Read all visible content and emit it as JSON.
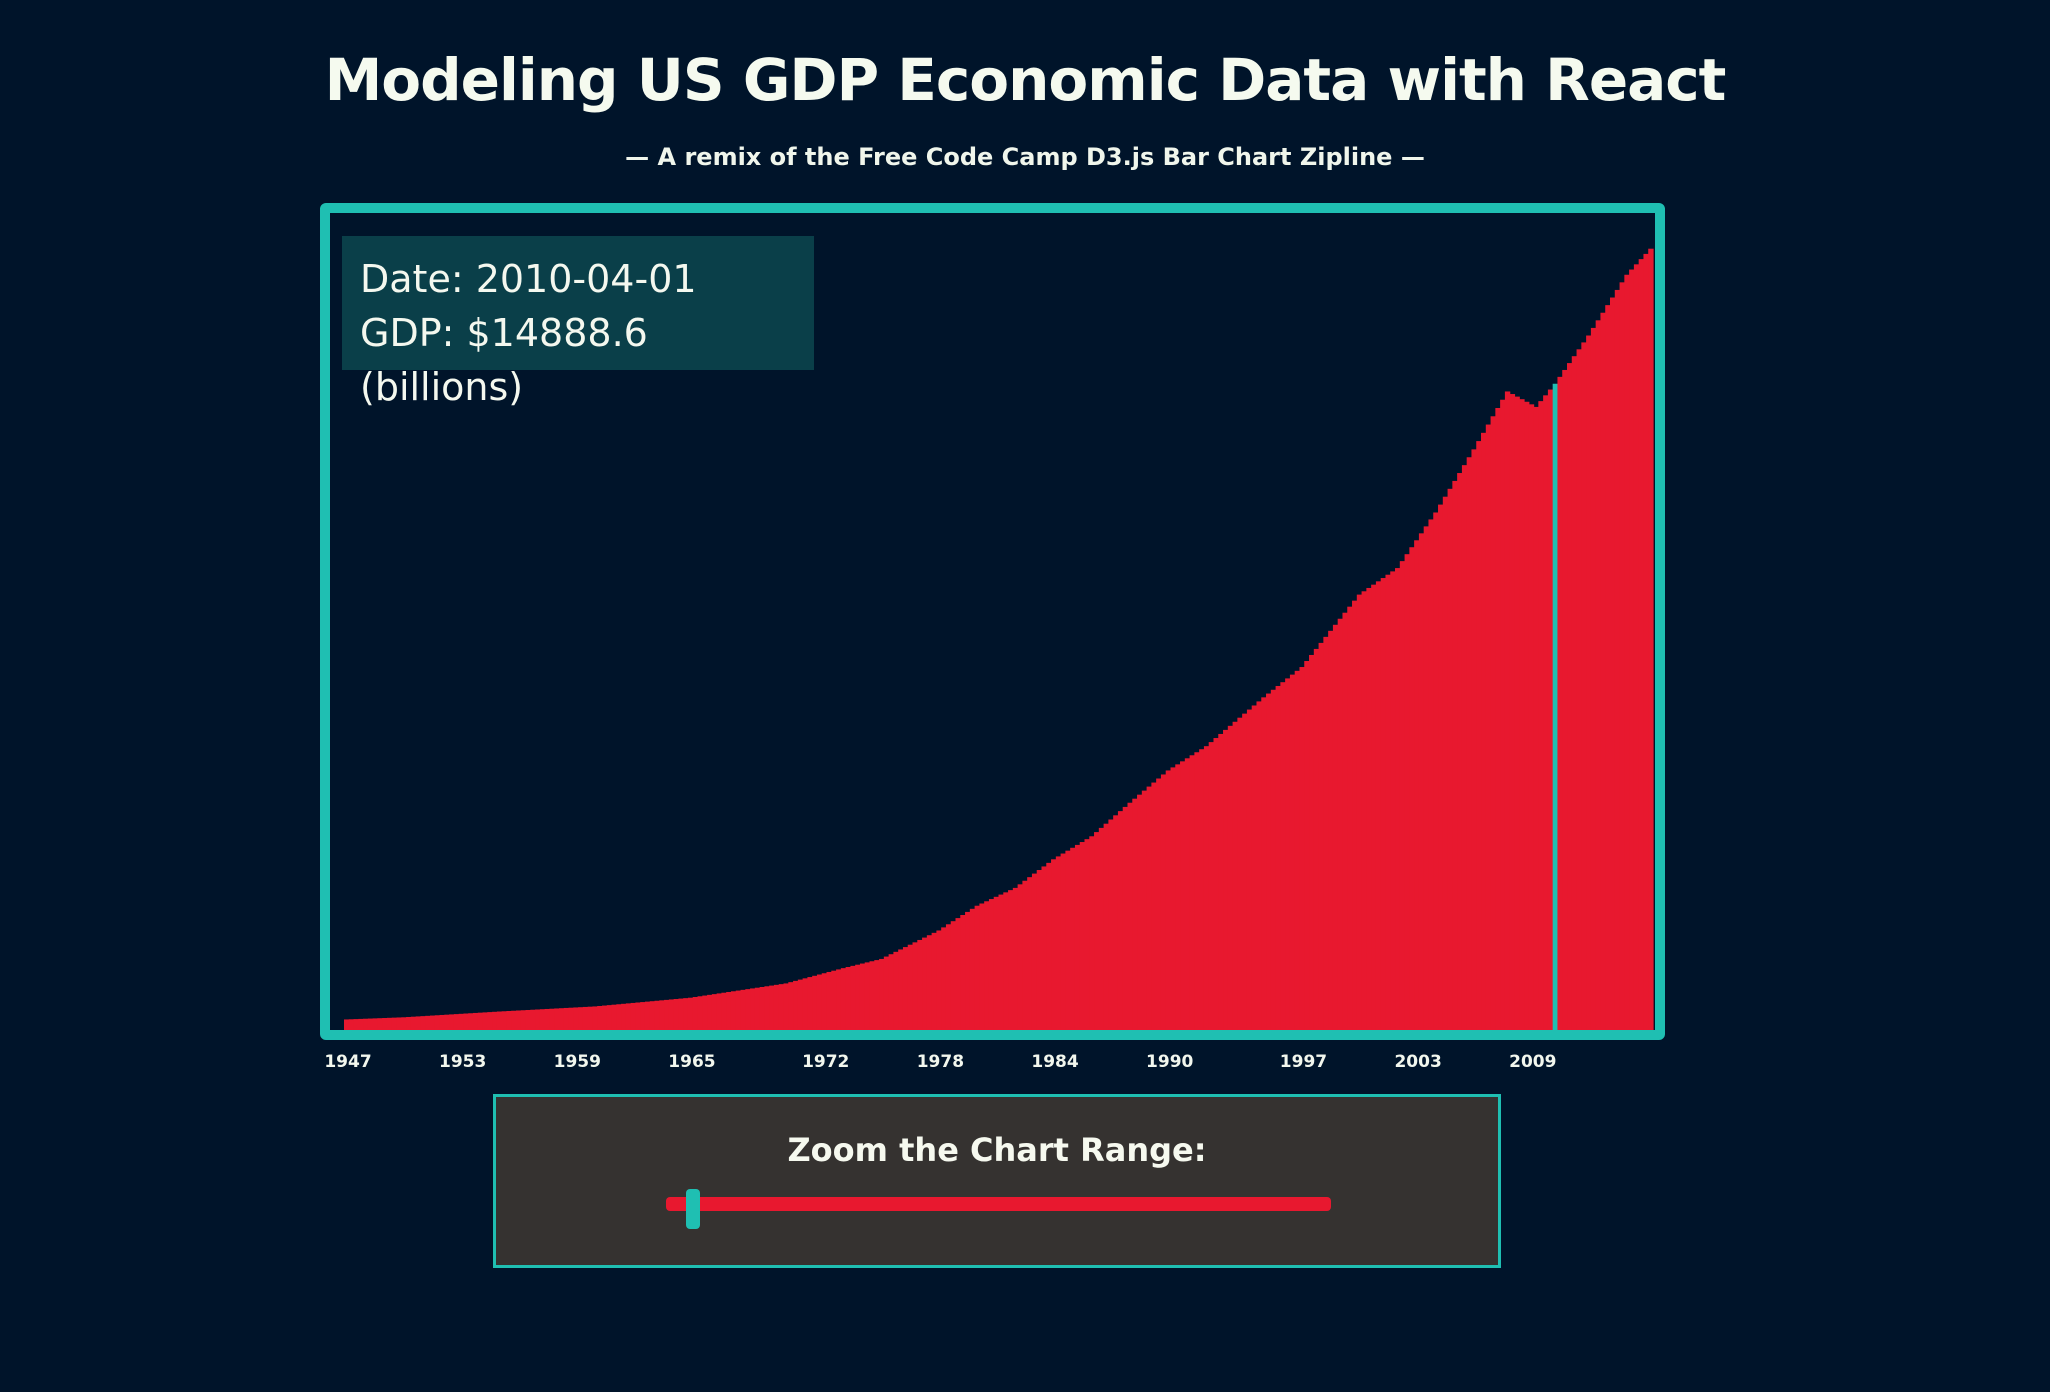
{
  "header": {
    "title": "Modeling US GDP Economic Data with React",
    "subtitle": "— A remix of the Free Code Camp D3.js Bar Chart Zipline —"
  },
  "tooltip": {
    "date_line": "Date: 2010-04-01",
    "gdp_line": "GDP: $14888.6 (billions)"
  },
  "zoom": {
    "label": "Zoom the Chart Range:",
    "slider_position": 0.04
  },
  "colors": {
    "background": "#00142a",
    "frame": "#1fbfb2",
    "bars": "#e8182f",
    "highlight": "#1fbfb2",
    "tooltip_bg": "#0a3f49",
    "zoom_bg": "#353230"
  },
  "chart_data": {
    "type": "bar",
    "title": "",
    "xlabel": "",
    "ylabel": "",
    "units": "billions",
    "x_ticks": [
      "1947",
      "1953",
      "1959",
      "1965",
      "1972",
      "1978",
      "1984",
      "1990",
      "1997",
      "2003",
      "2009"
    ],
    "xlim": [
      1947,
      2015.5
    ],
    "ylim": [
      0,
      18500
    ],
    "highlighted": {
      "date": "2010-04-01",
      "x": 2010.25,
      "value": 14888.6
    },
    "anchors": {
      "x": [
        1947,
        1950,
        1955,
        1960,
        1965,
        1970,
        1973,
        1975,
        1978,
        1980,
        1982,
        1984,
        1986,
        1988,
        1990,
        1992,
        1995,
        1997,
        2000,
        2002,
        2004,
        2006,
        2007.75,
        2009.25,
        2010.25,
        2012,
        2014,
        2015.25
      ],
      "y": [
        243,
        293,
        426,
        543,
        744,
        1073,
        1425,
        1637,
        2293,
        2863,
        3274,
        3933,
        4463,
        5236,
        5980,
        6539,
        7664,
        8362,
        10031,
        10642,
        11923,
        13377,
        14711,
        14355,
        14888.6,
        16000,
        17400,
        18000
      ]
    }
  }
}
